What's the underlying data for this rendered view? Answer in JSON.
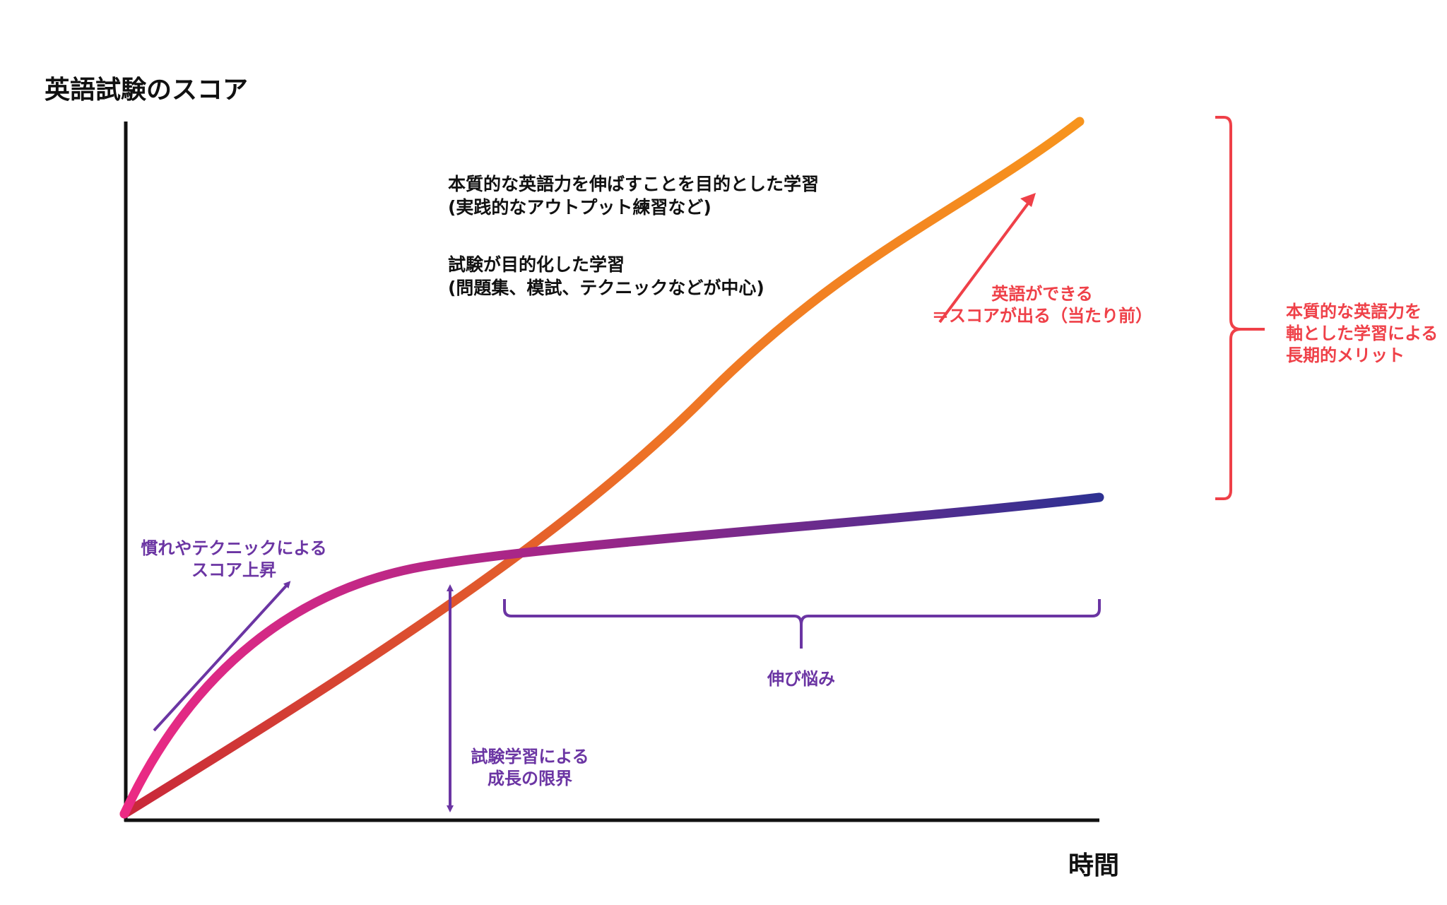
{
  "diagram": {
    "y_axis_label": "英語試験のスコア",
    "x_axis_label": "時間",
    "legend": [
      {
        "line1": "本質的な英語力を伸ばすことを目的とした学習",
        "line2": "(実践的なアウトプット練習など)",
        "gradient": [
          "#c8273a",
          "#f7941d"
        ]
      },
      {
        "line1": "試験が目的化した学習",
        "line2": "(問題集、模試、テクニックなどが中心)",
        "gradient": [
          "#ec2a84",
          "#2e3192"
        ]
      }
    ],
    "annotations": {
      "technique_rise": {
        "line1": "慣れやテクニックによる",
        "line2": "スコア上昇"
      },
      "test_limit": {
        "line1": "試験学習による",
        "line2": "成長の限界"
      },
      "plateau": "伸び悩み",
      "english_ability": {
        "line1": "英語ができる",
        "line2": "＝スコアが出る（当たり前）"
      },
      "long_term": {
        "line1": "本質的な英語力を",
        "line2": "軸とした学習による",
        "line3": "長期的メリット"
      }
    },
    "colors": {
      "axis": "#111111",
      "annotation_purple": "#6b35a3",
      "annotation_red": "#ef4048"
    }
  }
}
